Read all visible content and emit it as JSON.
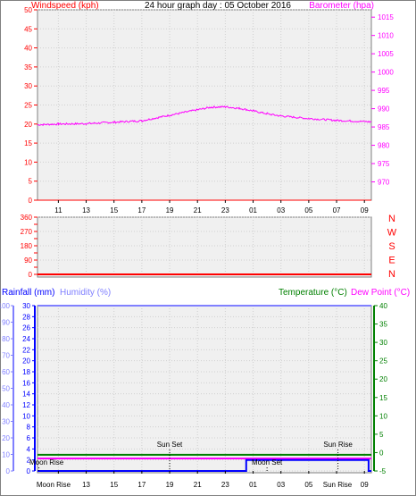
{
  "colors": {
    "windspeed": "#ff0000",
    "barometer": "#ff00ff",
    "direction": "#ff0000",
    "rainfall": "#0000ff",
    "humidity": "#8080ff",
    "temperature": "#008000",
    "dewpoint": "#ff00ff",
    "frame": "#808080",
    "plotbg": "#f0f0f0"
  },
  "chart_data": [
    {
      "type": "line",
      "panel": "wind-barometer",
      "title": "24 hour graph day : 05 October 2016",
      "ylabel": "Windspeed (kph)",
      "ylabel_right": "Barometer (hpa)",
      "ylim": [
        0,
        50
      ],
      "yticks": [
        "0",
        "5",
        "10",
        "15",
        "20",
        "25",
        "30",
        "35",
        "40",
        "45",
        "50"
      ],
      "ylim_right": [
        965,
        1017
      ],
      "yticks_right": [
        "970",
        "975",
        "980",
        "985",
        "990",
        "995",
        "1000",
        "1005",
        "1010",
        "1015"
      ],
      "xticks": [
        "11",
        "13",
        "15",
        "17",
        "19",
        "21",
        "23",
        "01",
        "03",
        "05",
        "07",
        "09"
      ],
      "grid": true,
      "series": [
        {
          "name": "Windspeed (kph)",
          "axis": "left",
          "x": [
            9.5,
            33.5
          ],
          "y": [
            0,
            0
          ]
        },
        {
          "name": "Barometer (hpa)",
          "axis": "right",
          "x": [
            9.5,
            11,
            13,
            15,
            17,
            19,
            21,
            22,
            23,
            24,
            25,
            26,
            27,
            29,
            31,
            33.5
          ],
          "y": [
            985.6,
            985.8,
            985.9,
            986.3,
            986.7,
            988.2,
            989.7,
            990.4,
            990.5,
            990.1,
            989.4,
            988.6,
            988.0,
            987.3,
            986.8,
            986.4
          ]
        }
      ]
    },
    {
      "type": "line",
      "panel": "wind-direction",
      "ylim": [
        0,
        360
      ],
      "yticks": [
        "0",
        "45",
        "90",
        "135",
        "180",
        "225",
        "270",
        "315",
        "360"
      ],
      "ylabels_right": [
        "N",
        "W",
        "S",
        "E",
        "N"
      ],
      "xticks": [
        "11",
        "13",
        "15",
        "17",
        "19",
        "21",
        "23",
        "01",
        "03",
        "05",
        "07",
        "09"
      ],
      "grid": true,
      "series": [
        {
          "name": "Wind direction",
          "x": [
            9.5,
            33.5
          ],
          "y": [
            0,
            0
          ]
        }
      ]
    },
    {
      "type": "line",
      "panel": "rain-humidity-temperature",
      "ylabel": "Rainfall (mm)",
      "ylabel_humidity": "Humidity (%)",
      "ylabel_right": "Temperature (°C)",
      "ylabel_right2": "Dew Point (°C)",
      "ylim": [
        0,
        30
      ],
      "yticks": [
        "0",
        "2",
        "4",
        "6",
        "8",
        "10",
        "12",
        "14",
        "16",
        "18",
        "20",
        "22",
        "24",
        "26",
        "28",
        "30"
      ],
      "ylim_humidity": [
        0,
        100
      ],
      "yticks_humidity": [
        "0",
        "10",
        "20",
        "30",
        "40",
        "50",
        "60",
        "70",
        "80",
        "90",
        "100"
      ],
      "ylim_right": [
        -5,
        40
      ],
      "yticks_right": [
        "-5",
        "0",
        "5",
        "10",
        "15",
        "20",
        "25",
        "30",
        "35",
        "40"
      ],
      "xticks": [
        "Moon Rise",
        "13",
        "15",
        "17",
        "19",
        "21",
        "23",
        "01",
        "03",
        "05",
        "Sun Rise",
        "09"
      ],
      "grid": true,
      "events": [
        {
          "label": "Moon Rise",
          "x": 9.6,
          "row": "low"
        },
        {
          "label": "Sun Set",
          "x": 19.0,
          "row": "high"
        },
        {
          "label": "Moon Set",
          "x": 26.0,
          "row": "low"
        },
        {
          "label": "Sun Rise",
          "x": 31.1,
          "row": "high"
        }
      ],
      "series": [
        {
          "name": "Rainfall (mm)",
          "axis": "left",
          "x": [
            9.5,
            24.5,
            24.5,
            33.3,
            33.3,
            33.5
          ],
          "y": [
            0,
            0,
            2.0,
            2.0,
            0,
            0
          ]
        },
        {
          "name": "Humidity (%)",
          "axis": "humidity",
          "x": [
            9.5,
            33.5
          ],
          "y": [
            100,
            100
          ]
        },
        {
          "name": "Temperature (°C)",
          "axis": "right",
          "x": [
            9.5,
            33.5
          ],
          "y": [
            -0.6,
            -0.6
          ]
        },
        {
          "name": "Dew Point (°C)",
          "axis": "right",
          "x": [
            9.5,
            33.5
          ],
          "y": [
            -1.6,
            -1.6
          ]
        }
      ]
    }
  ]
}
